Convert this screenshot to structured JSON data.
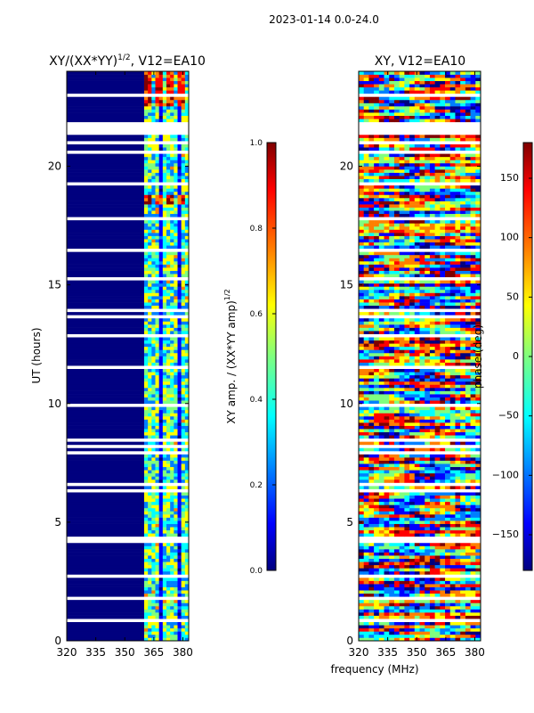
{
  "figure": {
    "suptitle": "2023-01-14 0.0-24.0"
  },
  "colors": {
    "navy": "#00007f",
    "jet": [
      "#00007f",
      "#0000ff",
      "#007fff",
      "#00ffff",
      "#7fff7f",
      "#ffff00",
      "#ff7f00",
      "#ff0000",
      "#7f0000"
    ],
    "gap": "#ffffff"
  },
  "chart_data": [
    {
      "type": "heatmap",
      "title_main": "XY/(XX*YY)",
      "title_exp": "1/2",
      "title_tail": ", V12=EA10",
      "xlabel": "",
      "ylabel": "UT (hours)",
      "xlim": [
        320,
        383
      ],
      "ylim": [
        0,
        24
      ],
      "xticks": [
        320,
        335,
        350,
        365,
        380
      ],
      "xtick_labels": [
        "320",
        "335",
        "350",
        "365",
        "380"
      ],
      "yticks": [
        0,
        5,
        10,
        15,
        20
      ],
      "ytick_labels": [
        "0",
        "5",
        "10",
        "15",
        "20"
      ],
      "active_band_mhz": [
        360,
        382
      ],
      "colorbar": {
        "label_main": "XY amp. / (XX*YY amp)",
        "label_exp": "1/2",
        "range": [
          0.0,
          1.0
        ],
        "ticks": [
          0.0,
          0.2,
          0.4,
          0.6,
          0.8,
          1.0
        ],
        "tick_labels": [
          "0.0",
          "0.2",
          "0.4",
          "0.6",
          "0.8",
          "1.0"
        ]
      }
    },
    {
      "type": "heatmap",
      "title": "XY, V12=EA10",
      "xlabel": "frequency (MHz)",
      "ylabel": "",
      "xlim": [
        320,
        383
      ],
      "ylim": [
        0,
        24
      ],
      "xticks": [
        320,
        335,
        350,
        365,
        380
      ],
      "xtick_labels": [
        "320",
        "335",
        "350",
        "365",
        "380"
      ],
      "yticks": [
        0,
        5,
        10,
        15,
        20
      ],
      "ytick_labels": [
        "0",
        "5",
        "10",
        "15",
        "20"
      ],
      "colorbar": {
        "label": "phase (deg)",
        "range": [
          -180,
          180
        ],
        "ticks": [
          -150,
          -100,
          -50,
          0,
          50,
          100,
          150
        ],
        "tick_labels": [
          "−150",
          "−100",
          "−50",
          "0",
          "50",
          "100",
          "150"
        ]
      }
    }
  ]
}
